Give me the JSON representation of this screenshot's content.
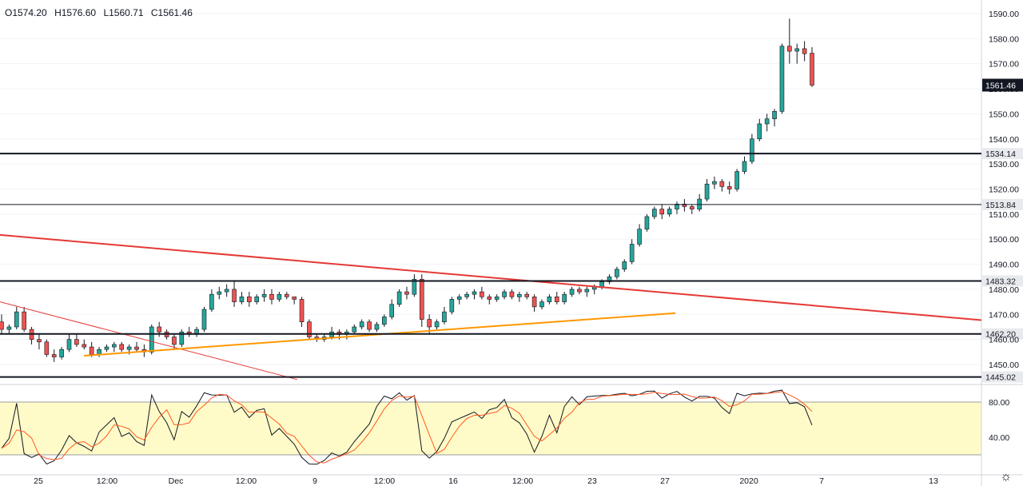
{
  "ohlc": {
    "open": "O1574.20",
    "high": "H1576.60",
    "low": "L1560.71",
    "close": "C1561.46"
  },
  "price_axis": {
    "ticks": [
      1590,
      1580,
      1570,
      1560,
      1550,
      1540,
      1530,
      1520,
      1510,
      1500,
      1490,
      1480,
      1470,
      1460,
      1450
    ],
    "labels": [
      "1590.00",
      "1580.00",
      "1570.00",
      "1560.00",
      "1550.00",
      "1540.00",
      "1530.00",
      "1520.00",
      "1510.00",
      "1500.00",
      "1490.00",
      "1480.00",
      "1470.00",
      "1460.00",
      "1450.00"
    ]
  },
  "osc_axis": {
    "labels": [
      "80.00",
      "40.00"
    ]
  },
  "time_axis": {
    "labels": [
      "25",
      "12:00",
      "Dec",
      "12:00",
      "9",
      "12:00",
      "16",
      "12:00",
      "23",
      "27",
      "2020",
      "7",
      "13"
    ]
  },
  "levels": [
    {
      "value": 1534.14,
      "label": "1534.14",
      "color": "#131722",
      "width": 2
    },
    {
      "value": 1513.84,
      "label": "1513.84",
      "color": "#131722",
      "width": 1
    },
    {
      "value": 1483.32,
      "label": "1483.32",
      "color": "#131722",
      "width": 2
    },
    {
      "value": 1462.2,
      "label": "1462.20",
      "color": "#131722",
      "width": 2
    },
    {
      "value": 1445.02,
      "label": "1445.02",
      "color": "#131722",
      "width": 2
    }
  ],
  "last_price": {
    "value": 1561.46,
    "label": "1561.46"
  },
  "colors": {
    "up": "#26a69a",
    "down": "#ef5350",
    "grid": "#f0f3fa",
    "osc_band": "#fffbc8",
    "k_line": "#131722",
    "d_line": "#ff5722",
    "orange": "#ff9800",
    "red": "#e53935"
  },
  "chart_data": {
    "type": "candlestick",
    "symbol_price_last": 1561.46,
    "ylim": [
      1443,
      1595
    ],
    "candles": [
      [
        1467,
        1470,
        1462,
        1464
      ],
      [
        1464,
        1466,
        1462,
        1465
      ],
      [
        1465,
        1473,
        1464,
        1471
      ],
      [
        1471,
        1473,
        1463,
        1464
      ],
      [
        1464,
        1465,
        1458,
        1460
      ],
      [
        1460,
        1462,
        1456,
        1459
      ],
      [
        1459,
        1460,
        1453,
        1454
      ],
      [
        1454,
        1456,
        1451,
        1453
      ],
      [
        1453,
        1457,
        1452,
        1456
      ],
      [
        1456,
        1462,
        1455,
        1460
      ],
      [
        1460,
        1462,
        1457,
        1458
      ],
      [
        1458,
        1460,
        1456,
        1457
      ],
      [
        1457,
        1459,
        1453,
        1454
      ],
      [
        1454,
        1457,
        1453,
        1456
      ],
      [
        1456,
        1458,
        1455,
        1457
      ],
      [
        1457,
        1459,
        1455,
        1458
      ],
      [
        1458,
        1459,
        1455,
        1456
      ],
      [
        1456,
        1458,
        1454,
        1457
      ],
      [
        1457,
        1459,
        1455,
        1456
      ],
      [
        1456,
        1458,
        1453,
        1455
      ],
      [
        1455,
        1466,
        1454,
        1465
      ],
      [
        1465,
        1467,
        1461,
        1463
      ],
      [
        1463,
        1464,
        1460,
        1461
      ],
      [
        1461,
        1462,
        1456,
        1458
      ],
      [
        1458,
        1464,
        1457,
        1463
      ],
      [
        1463,
        1465,
        1461,
        1462
      ],
      [
        1462,
        1465,
        1461,
        1464
      ],
      [
        1464,
        1473,
        1463,
        1472
      ],
      [
        1472,
        1480,
        1471,
        1478
      ],
      [
        1478,
        1481,
        1476,
        1479
      ],
      [
        1479,
        1482,
        1477,
        1480
      ],
      [
        1480,
        1483,
        1473,
        1475
      ],
      [
        1475,
        1479,
        1474,
        1477
      ],
      [
        1477,
        1479,
        1473,
        1475
      ],
      [
        1475,
        1478,
        1474,
        1477
      ],
      [
        1477,
        1480,
        1475,
        1478
      ],
      [
        1478,
        1480,
        1474,
        1476
      ],
      [
        1476,
        1479,
        1475,
        1478
      ],
      [
        1478,
        1479,
        1476,
        1477
      ],
      [
        1477,
        1477,
        1474,
        1476
      ],
      [
        1476,
        1477,
        1465,
        1467
      ],
      [
        1467,
        1468,
        1460,
        1461
      ],
      [
        1461,
        1462,
        1459,
        1460
      ],
      [
        1460,
        1462,
        1459,
        1461
      ],
      [
        1461,
        1465,
        1460,
        1463
      ],
      [
        1463,
        1464,
        1460,
        1462
      ],
      [
        1462,
        1464,
        1460,
        1463
      ],
      [
        1463,
        1466,
        1462,
        1465
      ],
      [
        1465,
        1468,
        1464,
        1467
      ],
      [
        1467,
        1468,
        1463,
        1464
      ],
      [
        1464,
        1467,
        1463,
        1466
      ],
      [
        1466,
        1470,
        1465,
        1469
      ],
      [
        1469,
        1476,
        1468,
        1474
      ],
      [
        1474,
        1480,
        1473,
        1479
      ],
      [
        1479,
        1481,
        1476,
        1478
      ],
      [
        1478,
        1486,
        1477,
        1484
      ],
      [
        1484,
        1486,
        1465,
        1468
      ],
      [
        1468,
        1470,
        1462,
        1465
      ],
      [
        1465,
        1468,
        1464,
        1467
      ],
      [
        1467,
        1473,
        1466,
        1471
      ],
      [
        1471,
        1477,
        1470,
        1476
      ],
      [
        1476,
        1478,
        1474,
        1477
      ],
      [
        1477,
        1479,
        1476,
        1478
      ],
      [
        1478,
        1480,
        1476,
        1479
      ],
      [
        1479,
        1481,
        1476,
        1477
      ],
      [
        1477,
        1478,
        1474,
        1476
      ],
      [
        1476,
        1478,
        1475,
        1477
      ],
      [
        1477,
        1480,
        1476,
        1479
      ],
      [
        1479,
        1480,
        1476,
        1477
      ],
      [
        1477,
        1479,
        1475,
        1478
      ],
      [
        1478,
        1479,
        1476,
        1477
      ],
      [
        1477,
        1478,
        1471,
        1473
      ],
      [
        1473,
        1476,
        1472,
        1475
      ],
      [
        1475,
        1478,
        1474,
        1477
      ],
      [
        1477,
        1479,
        1474,
        1475
      ],
      [
        1475,
        1479,
        1474,
        1478
      ],
      [
        1478,
        1481,
        1477,
        1480
      ],
      [
        1480,
        1481,
        1478,
        1479
      ],
      [
        1479,
        1481,
        1477,
        1480
      ],
      [
        1480,
        1482,
        1478,
        1481
      ],
      [
        1481,
        1484,
        1480,
        1483
      ],
      [
        1483,
        1486,
        1482,
        1485
      ],
      [
        1485,
        1489,
        1484,
        1488
      ],
      [
        1488,
        1492,
        1487,
        1491
      ],
      [
        1491,
        1500,
        1490,
        1498
      ],
      [
        1498,
        1506,
        1497,
        1504
      ],
      [
        1504,
        1510,
        1503,
        1509
      ],
      [
        1509,
        1513,
        1508,
        1512
      ],
      [
        1512,
        1514,
        1508,
        1510
      ],
      [
        1510,
        1513,
        1509,
        1512
      ],
      [
        1512,
        1515,
        1510,
        1514
      ],
      [
        1514,
        1516,
        1511,
        1513
      ],
      [
        1513,
        1514,
        1510,
        1512
      ],
      [
        1512,
        1518,
        1511,
        1516
      ],
      [
        1516,
        1524,
        1515,
        1522
      ],
      [
        1522,
        1525,
        1520,
        1523
      ],
      [
        1523,
        1524,
        1519,
        1521
      ],
      [
        1521,
        1523,
        1518,
        1520
      ],
      [
        1520,
        1528,
        1519,
        1527
      ],
      [
        1527,
        1533,
        1526,
        1531
      ],
      [
        1531,
        1542,
        1530,
        1540
      ],
      [
        1540,
        1548,
        1539,
        1546
      ],
      [
        1546,
        1550,
        1543,
        1548
      ],
      [
        1548,
        1552,
        1545,
        1551
      ],
      [
        1551,
        1578,
        1550,
        1577
      ],
      [
        1577,
        1588,
        1570,
        1575
      ],
      [
        1575,
        1578,
        1570,
        1576
      ],
      [
        1576,
        1579,
        1571,
        1574
      ],
      [
        1574.2,
        1576.6,
        1560.71,
        1561.46
      ]
    ]
  }
}
